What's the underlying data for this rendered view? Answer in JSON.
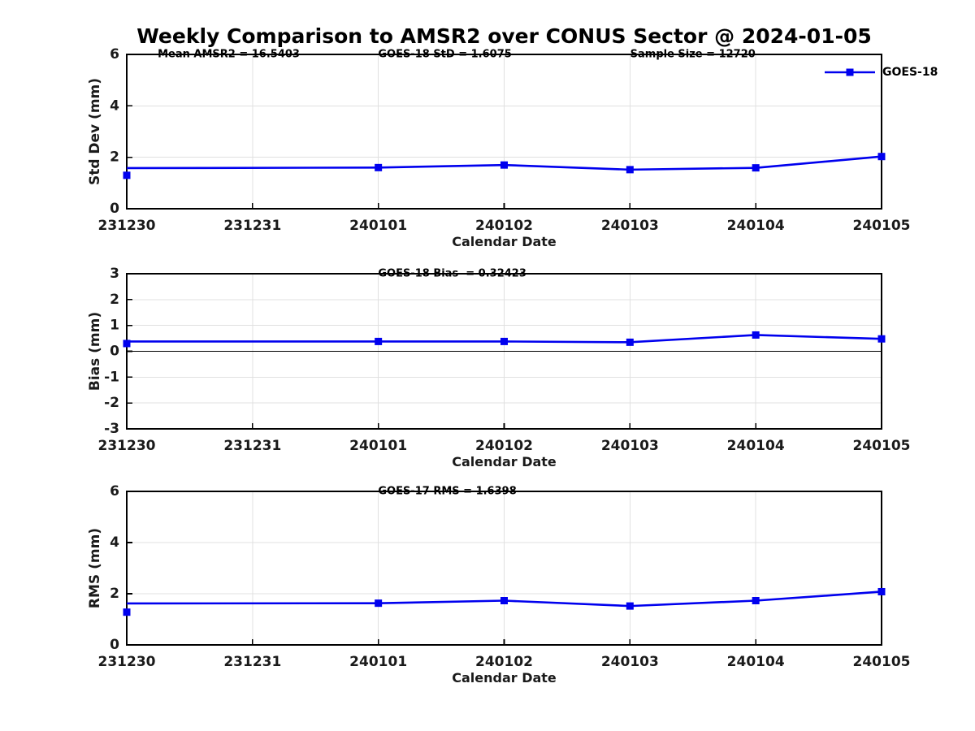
{
  "title": "Weekly Comparison to AMSR2 over CONUS Sector @ 2024-01-05",
  "colors": {
    "series_blue": "#0000EE",
    "grid": "#e0e0e0",
    "axis": "#000000",
    "zero_line": "#000000",
    "tick_text": "#1a1a1a",
    "background": "#ffffff"
  },
  "chart_data": [
    {
      "type": "line",
      "name": "std-dev",
      "ylabel": "Std Dev (mm)",
      "xlabel": "Calendar Date",
      "ylim": [
        0,
        6
      ],
      "yticks": [
        0,
        2,
        4,
        6
      ],
      "categories": [
        "231230",
        "231231",
        "240101",
        "240102",
        "240103",
        "240104",
        "240105"
      ],
      "grid": true,
      "zero_line": false,
      "legend": {
        "show": true,
        "label": "GOES-18",
        "position": "top-right"
      },
      "annotations": [
        {
          "text": "Mean AMSR2 = 16.5403",
          "fx": 0.041
        },
        {
          "text": "GOES-18 StD = 1.6075",
          "fx": 0.333
        },
        {
          "text": "Sample Size = 12720",
          "fx": 0.667
        }
      ],
      "series": [
        {
          "name": "GOES-18",
          "marker": "square",
          "x": [
            "231230",
            "240101",
            "240102",
            "240103",
            "240104",
            "240105"
          ],
          "line_y": [
            1.58,
            1.6,
            1.7,
            1.52,
            1.59,
            2.03
          ],
          "marker_y": [
            1.3,
            1.6,
            1.7,
            1.52,
            1.59,
            2.03
          ]
        }
      ]
    },
    {
      "type": "line",
      "name": "bias",
      "ylabel": "Bias (mm)",
      "xlabel": "Calendar Date",
      "ylim": [
        -3,
        3
      ],
      "yticks": [
        3,
        2,
        1,
        0,
        -1,
        -2,
        -3
      ],
      "categories": [
        "231230",
        "231231",
        "240101",
        "240102",
        "240103",
        "240104",
        "240105"
      ],
      "grid": true,
      "zero_line": true,
      "legend": {
        "show": false
      },
      "annotations": [
        {
          "text": "GOES-18 Bias  = 0.32423",
          "fx": 0.333
        }
      ],
      "series": [
        {
          "name": "GOES-18",
          "marker": "square",
          "x": [
            "231230",
            "240101",
            "240102",
            "240103",
            "240104",
            "240105"
          ],
          "line_y": [
            0.38,
            0.38,
            0.38,
            0.35,
            0.63,
            0.48
          ],
          "marker_y": [
            0.3,
            0.38,
            0.38,
            0.35,
            0.63,
            0.48
          ]
        }
      ]
    },
    {
      "type": "line",
      "name": "rms",
      "ylabel": "RMS (mm)",
      "xlabel": "Calendar Date",
      "ylim": [
        0,
        6
      ],
      "yticks": [
        0,
        2,
        4,
        6
      ],
      "categories": [
        "231230",
        "231231",
        "240101",
        "240102",
        "240103",
        "240104",
        "240105"
      ],
      "grid": true,
      "zero_line": false,
      "legend": {
        "show": false
      },
      "annotations": [
        {
          "text": "GOES-17 RMS = 1.6398",
          "fx": 0.333
        }
      ],
      "series": [
        {
          "name": "GOES-18",
          "marker": "square",
          "x": [
            "231230",
            "240101",
            "240102",
            "240103",
            "240104",
            "240105"
          ],
          "line_y": [
            1.62,
            1.63,
            1.73,
            1.52,
            1.73,
            2.08
          ],
          "marker_y": [
            1.28,
            1.63,
            1.73,
            1.52,
            1.73,
            2.08
          ]
        }
      ]
    }
  ]
}
